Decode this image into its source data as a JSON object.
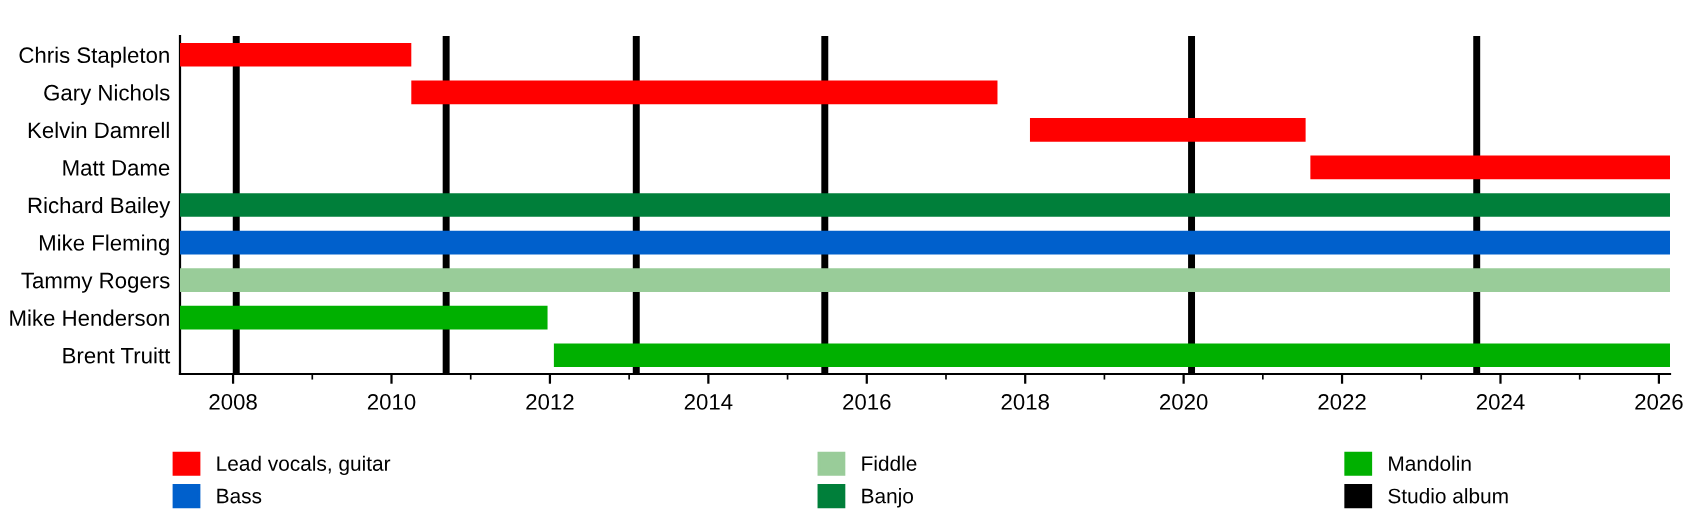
{
  "chart_data": {
    "type": "bar",
    "orientation": "horizontal",
    "categories": [
      "Chris Stapleton",
      "Gary Nichols",
      "Kelvin Damrell",
      "Matt Dame",
      "Richard Bailey",
      "Mike Fleming",
      "Tammy Rogers",
      "Mike Henderson",
      "Brent Truitt"
    ],
    "series": [
      {
        "name": "Lead vocals, guitar",
        "color": "#ff0000",
        "base": [
          2007.33,
          2010.25,
          2018.06,
          2021.6,
          null,
          null,
          null,
          null,
          null
        ],
        "values": [
          2.92,
          7.4,
          3.48,
          4.54,
          null,
          null,
          null,
          null,
          null
        ]
      },
      {
        "name": "Bass",
        "color": "#0060cc",
        "base": [
          null,
          null,
          null,
          null,
          null,
          2007.33,
          null,
          null,
          null
        ],
        "values": [
          null,
          null,
          null,
          null,
          null,
          18.81,
          null,
          null,
          null
        ]
      },
      {
        "name": "Fiddle",
        "color": "#99cc99",
        "base": [
          null,
          null,
          null,
          null,
          null,
          null,
          2007.33,
          null,
          null
        ],
        "values": [
          null,
          null,
          null,
          null,
          null,
          null,
          18.81,
          null,
          null
        ]
      },
      {
        "name": "Banjo",
        "color": "#007f3a",
        "base": [
          null,
          null,
          null,
          null,
          2007.33,
          null,
          null,
          null,
          null
        ],
        "values": [
          null,
          null,
          null,
          null,
          18.81,
          null,
          null,
          null,
          null
        ]
      },
      {
        "name": "Mandolin",
        "color": "#00b000",
        "base": [
          null,
          null,
          null,
          null,
          null,
          null,
          null,
          2007.33,
          2012.05
        ],
        "values": [
          null,
          null,
          null,
          null,
          null,
          null,
          null,
          4.64,
          14.09
        ]
      }
    ],
    "ref_lines": [
      {
        "axis": "x",
        "value": 2008.04,
        "label": "Studio album",
        "color": "#000000"
      },
      {
        "axis": "x",
        "value": 2010.69,
        "label": null,
        "color": "#000000"
      },
      {
        "axis": "x",
        "value": 2013.09,
        "label": null,
        "color": "#000000"
      },
      {
        "axis": "x",
        "value": 2015.47,
        "label": null,
        "color": "#000000"
      },
      {
        "axis": "x",
        "value": 2020.1,
        "label": null,
        "color": "#000000"
      },
      {
        "axis": "x",
        "value": 2023.7,
        "label": null,
        "color": "#000000"
      }
    ],
    "xlim": [
      2007.33,
      2026.14
    ],
    "xticks": [
      2008,
      2010,
      2012,
      2014,
      2016,
      2018,
      2020,
      2022,
      2024,
      2026
    ],
    "grid": false,
    "legend": "bottom"
  }
}
